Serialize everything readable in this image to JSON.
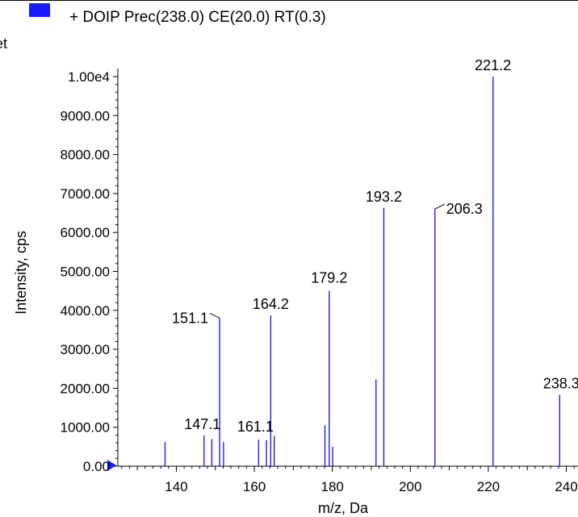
{
  "legend": {
    "label": "+ DOIP Prec(238.0) CE(20.0) RT(0.3)",
    "swatch_color": "#1a1aff"
  },
  "edge_fragment": "et",
  "chart_data": {
    "type": "bar",
    "title": "",
    "xlabel": "m/z, Da",
    "ylabel": "Intensity, cps",
    "xlim": [
      125,
      243
    ],
    "ylim": [
      0,
      10000
    ],
    "x_ticks": [
      140,
      160,
      180,
      200,
      220,
      240
    ],
    "y_ticks": [
      {
        "value": 0,
        "label": "0.00"
      },
      {
        "value": 1000,
        "label": "1000.00"
      },
      {
        "value": 2000,
        "label": "2000.00"
      },
      {
        "value": 3000,
        "label": "3000.00"
      },
      {
        "value": 4000,
        "label": "4000.00"
      },
      {
        "value": 5000,
        "label": "5000.00"
      },
      {
        "value": 6000,
        "label": "6000.00"
      },
      {
        "value": 7000,
        "label": "7000.00"
      },
      {
        "value": 8000,
        "label": "8000.00"
      },
      {
        "value": 9000,
        "label": "9000.00"
      },
      {
        "value": 10000,
        "label": "1.00e4"
      }
    ],
    "series_color": "#2020e0",
    "peaks": [
      {
        "mz": 137.1,
        "intensity": 620
      },
      {
        "mz": 147.1,
        "intensity": 790,
        "label": "147.1"
      },
      {
        "mz": 149.1,
        "intensity": 700
      },
      {
        "mz": 151.1,
        "intensity": 3800,
        "label": "151.1"
      },
      {
        "mz": 152.1,
        "intensity": 620
      },
      {
        "mz": 161.1,
        "intensity": 680,
        "label": "161.1"
      },
      {
        "mz": 163.1,
        "intensity": 670
      },
      {
        "mz": 164.2,
        "intensity": 3870,
        "label": "164.2"
      },
      {
        "mz": 165.1,
        "intensity": 780
      },
      {
        "mz": 178.1,
        "intensity": 1050
      },
      {
        "mz": 179.2,
        "intensity": 4500,
        "label": "179.2"
      },
      {
        "mz": 180.1,
        "intensity": 500
      },
      {
        "mz": 191.2,
        "intensity": 2230
      },
      {
        "mz": 193.2,
        "intensity": 6630,
        "label": "193.2"
      },
      {
        "mz": 206.3,
        "intensity": 6600,
        "label": "206.3"
      },
      {
        "mz": 221.2,
        "intensity": 10000,
        "label": "221.2"
      },
      {
        "mz": 238.3,
        "intensity": 1830,
        "label": "238.3"
      }
    ]
  }
}
